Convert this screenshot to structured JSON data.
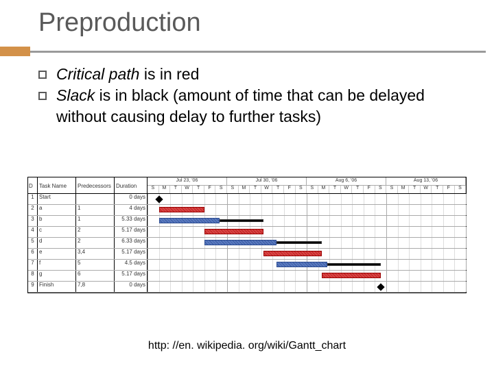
{
  "title": "Preproduction",
  "bullets": [
    {
      "em": "Critical path",
      "rest": " is in red"
    },
    {
      "em": "Slack",
      "rest": " is in black (amount of time that can be delayed without causing delay to further tasks)"
    }
  ],
  "footer": "http: //en. wikipedia. org/wiki/Gantt_chart",
  "table": {
    "headers": {
      "d": "D",
      "task": "Task Name",
      "pred": "Predecessors",
      "dur": "Duration"
    },
    "weeks": [
      "Jul 23, '06",
      "Jul 30, '06",
      "Aug 6, '06",
      "Aug 13, '06"
    ],
    "days": [
      "S",
      "M",
      "T",
      "W",
      "T",
      "F",
      "S"
    ],
    "rows": [
      {
        "id": "1",
        "name": "Start",
        "pred": "",
        "dur": "0 days"
      },
      {
        "id": "2",
        "name": "a",
        "pred": "1",
        "dur": "4 days"
      },
      {
        "id": "3",
        "name": "b",
        "pred": "1",
        "dur": "5.33 days"
      },
      {
        "id": "4",
        "name": "c",
        "pred": "2",
        "dur": "5.17 days"
      },
      {
        "id": "5",
        "name": "d",
        "pred": "2",
        "dur": "6.33 days"
      },
      {
        "id": "6",
        "name": "e",
        "pred": "3,4",
        "dur": "5.17 days"
      },
      {
        "id": "7",
        "name": "f",
        "pred": "5",
        "dur": "4.5 days"
      },
      {
        "id": "8",
        "name": "g",
        "pred": "6",
        "dur": "5.17 days"
      },
      {
        "id": "9",
        "name": "Finish",
        "pred": "7,8",
        "dur": "0 days"
      }
    ]
  },
  "chart": {
    "timeline_width_pct_per_day": 3.571,
    "grid_days": 28,
    "colors": {
      "critical": "#d94444",
      "normal": "#5a7ac0",
      "slack": "#000000"
    },
    "bars": [
      {
        "row": 0,
        "type": "milestone",
        "start": 1.0
      },
      {
        "row": 1,
        "type": "red",
        "start": 1.0,
        "len": 4.0
      },
      {
        "row": 2,
        "type": "blue",
        "start": 1.0,
        "len": 5.33
      },
      {
        "row": 2,
        "type": "black",
        "start": 6.33,
        "len": 3.84
      },
      {
        "row": 3,
        "type": "red",
        "start": 5.0,
        "len": 5.17
      },
      {
        "row": 4,
        "type": "blue",
        "start": 5.0,
        "len": 6.33
      },
      {
        "row": 4,
        "type": "black",
        "start": 11.33,
        "len": 4.01
      },
      {
        "row": 5,
        "type": "red",
        "start": 10.17,
        "len": 5.17
      },
      {
        "row": 6,
        "type": "blue",
        "start": 11.33,
        "len": 4.5
      },
      {
        "row": 6,
        "type": "black",
        "start": 15.83,
        "len": 4.68
      },
      {
        "row": 7,
        "type": "red",
        "start": 15.34,
        "len": 5.17
      },
      {
        "row": 8,
        "type": "milestone",
        "start": 20.51
      }
    ]
  }
}
